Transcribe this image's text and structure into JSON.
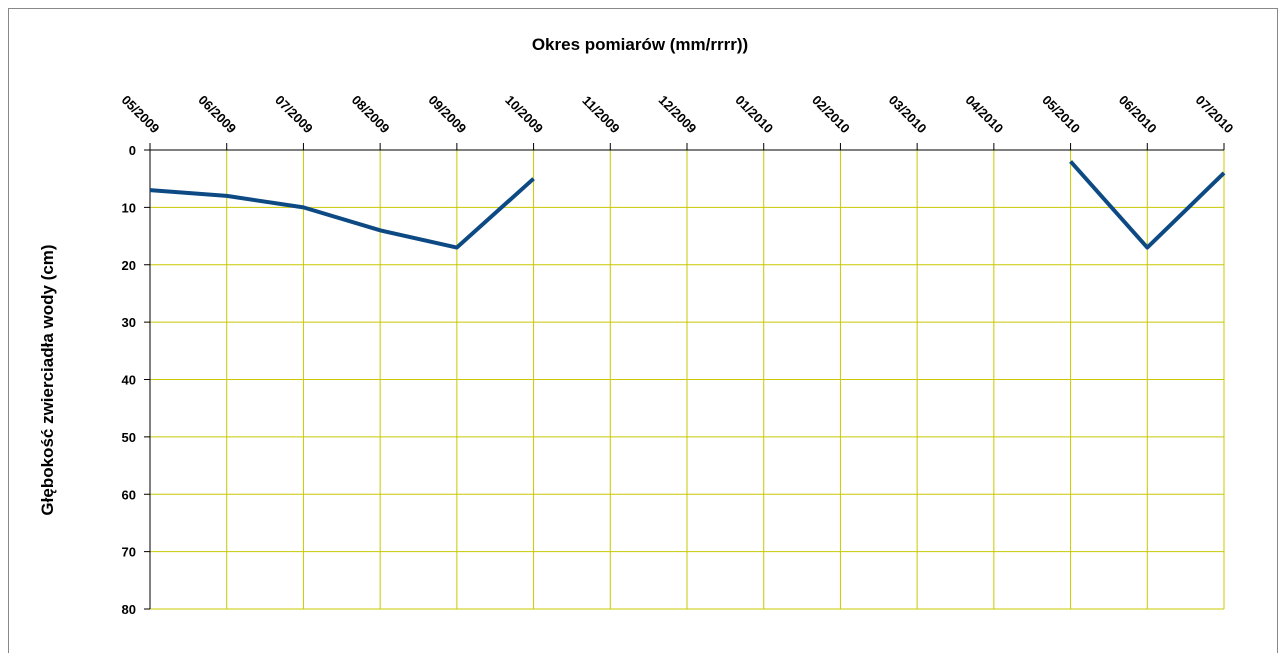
{
  "chart_data": {
    "type": "line",
    "x_axis_label": "Okres pomiarów (mm/rrrr))",
    "y_axis_label": "Głębokość zwierciadła wody (cm)",
    "categories": [
      "05/2009",
      "06/2009",
      "07/2009",
      "08/2009",
      "09/2009",
      "10/2009",
      "11/2009",
      "12/2009",
      "01/2010",
      "02/2010",
      "03/2010",
      "04/2010",
      "05/2010",
      "06/2010",
      "07/2010"
    ],
    "series": [
      {
        "color": "#0d4a84",
        "values": [
          7,
          8,
          10,
          14,
          17,
          5,
          null,
          null,
          null,
          null,
          null,
          null,
          2,
          17,
          4
        ]
      }
    ],
    "ylim": [
      0,
      80
    ],
    "yticks": [
      0,
      10,
      20,
      30,
      40,
      50,
      60,
      70,
      80
    ],
    "y_reversed": true,
    "x_axis_position": "top",
    "grid": true,
    "grid_color": "#c8c800"
  }
}
